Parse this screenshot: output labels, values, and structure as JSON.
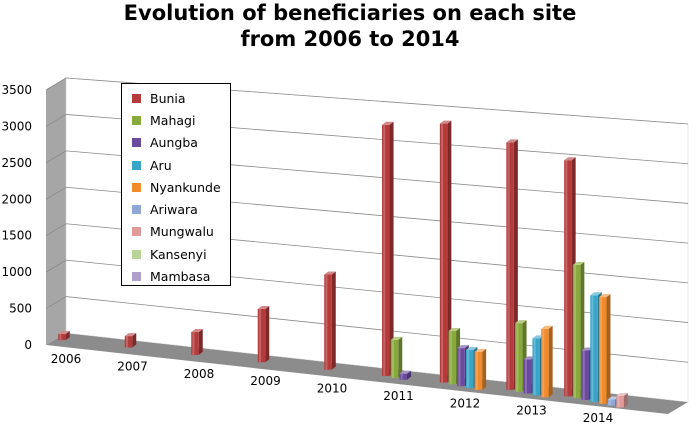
{
  "chart_data": {
    "type": "bar",
    "title": [
      "Evolution of beneficiaries on each site",
      "from 2006 to 2014"
    ],
    "categories": [
      "2006",
      "2007",
      "2008",
      "2009",
      "2010",
      "2011",
      "2012",
      "2013",
      "2014"
    ],
    "ylim": [
      0,
      3500
    ],
    "yticks": [
      "0",
      "500",
      "1000",
      "1500",
      "2000",
      "2500",
      "3000",
      "3500"
    ],
    "grid": true,
    "legend_position": "top-left",
    "series": [
      {
        "name": "Bunia",
        "color": "#b33b3b",
        "values": [
          80,
          150,
          300,
          700,
          1250,
          3300,
          3400,
          3250,
          3100
        ]
      },
      {
        "name": "Mahagi",
        "color": "#88aa3c",
        "values": [
          0,
          0,
          0,
          0,
          0,
          500,
          700,
          900,
          1750
        ]
      },
      {
        "name": "Aungba",
        "color": "#6a4a9c",
        "values": [
          0,
          0,
          0,
          0,
          0,
          80,
          500,
          450,
          650
        ]
      },
      {
        "name": "Aru",
        "color": "#3aa5c8",
        "values": [
          0,
          0,
          0,
          0,
          0,
          0,
          500,
          750,
          1400
        ]
      },
      {
        "name": "Nyankunde",
        "color": "#f08a2a",
        "values": [
          0,
          0,
          0,
          0,
          0,
          0,
          500,
          900,
          1400
        ]
      },
      {
        "name": "Ariwara",
        "color": "#8fa8d8",
        "values": [
          0,
          0,
          0,
          0,
          0,
          0,
          0,
          0,
          80
        ]
      },
      {
        "name": "Mungwalu",
        "color": "#e09a9a",
        "values": [
          0,
          0,
          0,
          0,
          0,
          0,
          0,
          0,
          150
        ]
      },
      {
        "name": "Kansenyi",
        "color": "#b8d498",
        "values": [
          0,
          0,
          0,
          0,
          0,
          0,
          0,
          0,
          0
        ]
      },
      {
        "name": "Mambasa",
        "color": "#b0a0cc",
        "values": [
          0,
          0,
          0,
          0,
          0,
          0,
          0,
          0,
          0
        ]
      }
    ]
  }
}
